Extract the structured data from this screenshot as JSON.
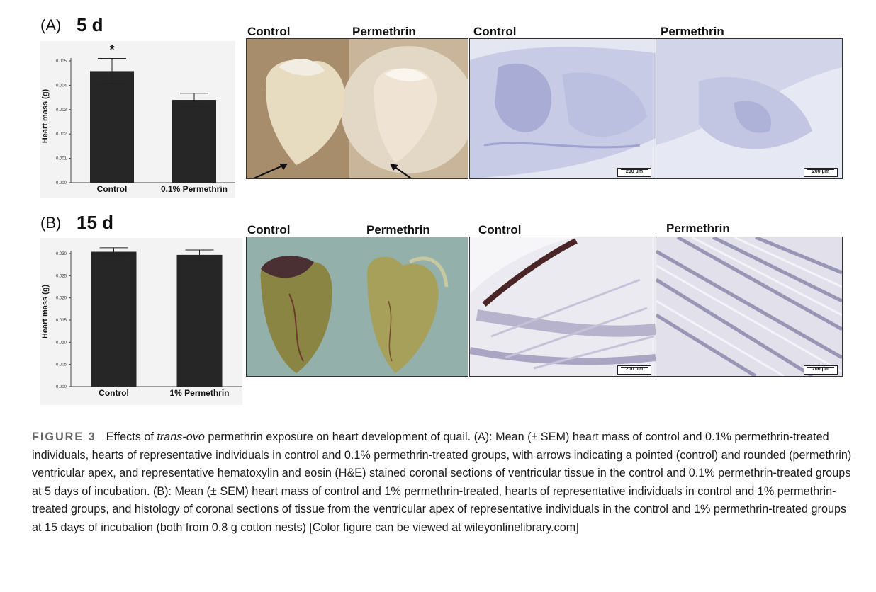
{
  "panels": {
    "a": {
      "label": "(A)",
      "time": "5 d"
    },
    "b": {
      "label": "(B)",
      "time": "15 d"
    }
  },
  "photo_titles": {
    "a": [
      "Control",
      "Permethrin",
      "Control",
      "Permethrin"
    ],
    "b": [
      "Control",
      "Permethrin",
      "Control",
      "Permethrin"
    ]
  },
  "scale_bar_label": "200 μm",
  "significance_marker": "*",
  "chart_data": [
    {
      "type": "bar",
      "ylabel": "Heart mass (g)",
      "categories": [
        "Control",
        "0.1% Permethrin"
      ],
      "values": [
        0.00458,
        0.0034
      ],
      "errors": [
        0.00052,
        0.00027
      ],
      "ylim": [
        0,
        0.005
      ],
      "yticks": [
        "0.000",
        "0.001",
        "0.002",
        "0.003",
        "0.004",
        "0.005"
      ],
      "bar_color": "#262626",
      "annotations": [
        "*",
        ""
      ]
    },
    {
      "type": "bar",
      "ylabel": "Heart mass (g)",
      "categories": [
        "Control",
        "1% Permethrin"
      ],
      "values": [
        0.0304,
        0.0297
      ],
      "errors": [
        0.0009,
        0.0011
      ],
      "ylim": [
        0,
        0.03
      ],
      "yticks": [
        "0.000",
        "0.005",
        "0.010",
        "0.015",
        "0.020",
        "0.025",
        "0.030"
      ],
      "bar_color": "#262626",
      "annotations": [
        "",
        ""
      ]
    }
  ],
  "caption": {
    "figure_label": "FIGURE 3",
    "text_before_italic": "Effects of ",
    "italic": "trans-ovo",
    "text_after_italic": " permethrin exposure on heart development of quail. (A): Mean (± SEM) heart mass of control and 0.1% permethrin-treated individuals, hearts of representative individuals in control and 0.1% permethrin-treated groups, with arrows indicating a pointed (control) and rounded (permethrin) ventricular apex, and representative hematoxylin and eosin (H&E) stained coronal sections of ventricular tissue in the control and 0.1% permethrin-treated groups at 5 days of incubation. (B): Mean (± SEM) heart mass of control and 1% permethrin-treated, hearts of representative individuals in control and 1% permethrin-treated groups, and histology of coronal sections of tissue from the ventricular apex of representative individuals in the control and 1% permethrin-treated groups at 15 days of incubation (both from 0.8 g cotton nests) [Color figure can be viewed at wileyonlinelibrary.com]"
  }
}
